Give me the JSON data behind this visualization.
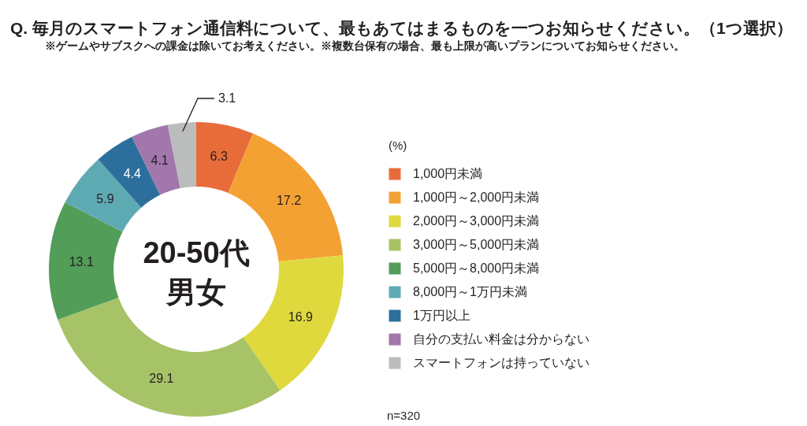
{
  "chart_data": {
    "type": "donut",
    "title": "Q. 毎月のスマートフォン通信料について、最もあてはまるものを一つお知らせください。（1つ選択）",
    "subtitle": "※ゲームやサブスクへの課金は除いてお考えください。※複数台保有の場合、最も上限が高いプランについてお知らせください。",
    "legend_title": "(%)",
    "categories": [
      "1,000円未満",
      "1,000円～2,000円未満",
      "2,000円～3,000円未満",
      "3,000円～5,000円未満",
      "5,000円～8,000円未満",
      "8,000円～1万円未満",
      "1万円以上",
      "自分の支払い料金は分からない",
      "スマートフォンは持っていない"
    ],
    "values": [
      6.3,
      17.2,
      16.9,
      29.1,
      13.1,
      5.9,
      4.4,
      4.1,
      3.1
    ],
    "colors": [
      "#e86c3a",
      "#f4a133",
      "#dfd93e",
      "#a7c367",
      "#529d58",
      "#5eaab3",
      "#2d6f9c",
      "#a177ac",
      "#bbbcbc"
    ],
    "data_labels": true,
    "legend": "right",
    "annotations": [
      "20-50代",
      "男女",
      "n=320"
    ]
  }
}
